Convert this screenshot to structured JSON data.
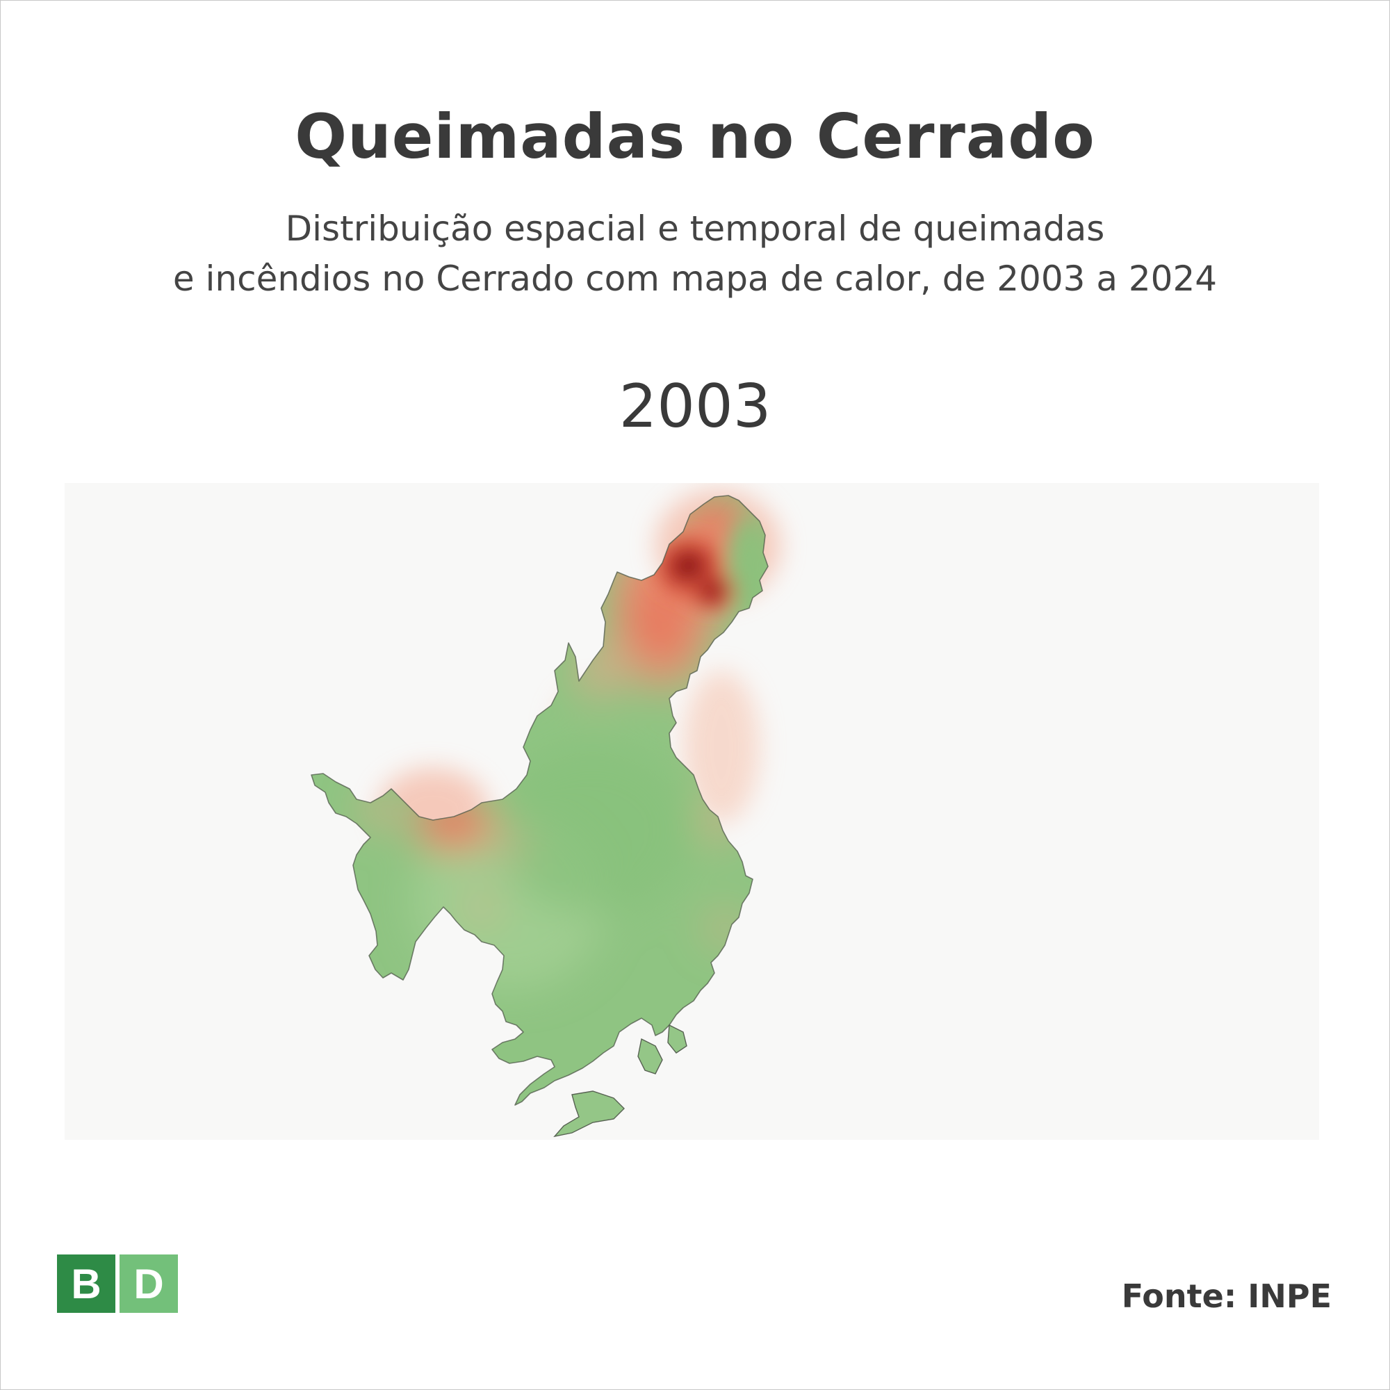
{
  "title": "Queimadas no Cerrado",
  "subtitle_line1": "Distribuição espacial e temporal de queimadas",
  "subtitle_line2": "e incêndios no Cerrado com mapa de calor, de 2003 a 2024",
  "year": "2003",
  "logo": {
    "left_letter": "B",
    "right_letter": "D",
    "left_color": "#2e8b46",
    "right_color": "#73c07a"
  },
  "source": "Fonte: INPE",
  "colors": {
    "low_intensity": "#8cc47e",
    "medium_intensity": "#e8765a",
    "high_intensity": "#8a0f12",
    "background": "#f8f8f7"
  }
}
